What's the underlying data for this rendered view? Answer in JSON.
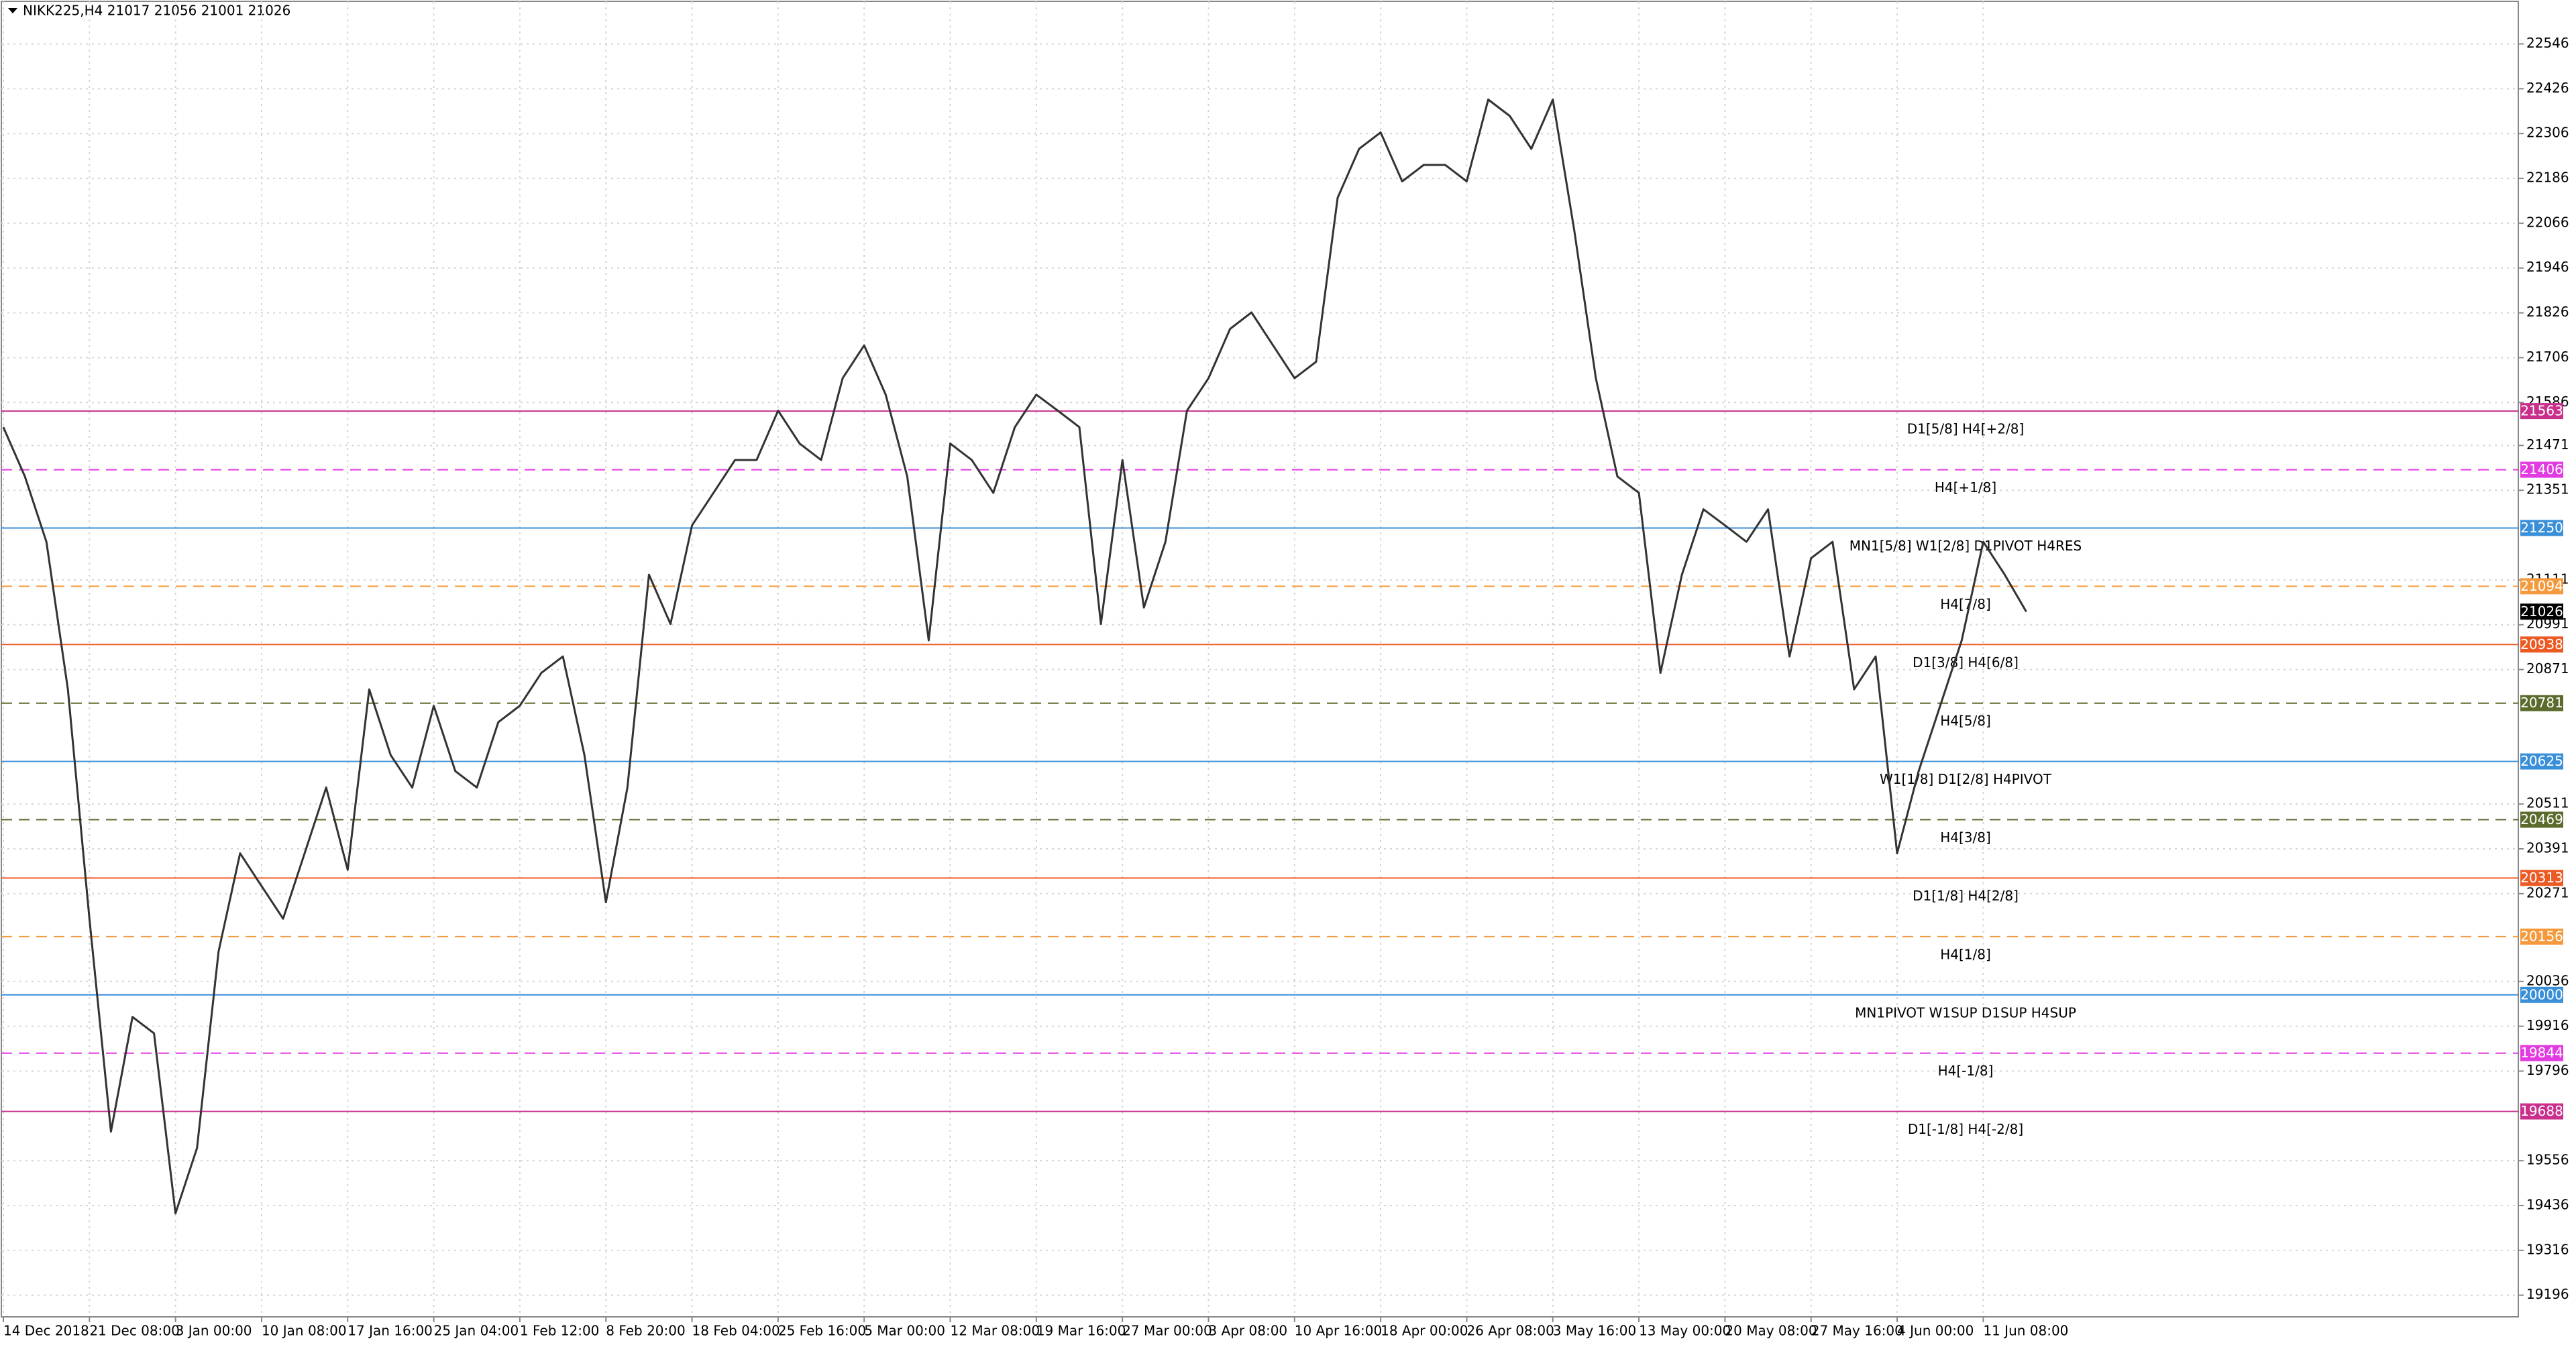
{
  "chart_data": {
    "type": "line",
    "title": "NIKK225,H4  21017 21056 21001 21026",
    "color": "#333333",
    "grid": true,
    "categories": [
      "14 Dec 2018",
      null,
      null,
      null,
      "21 Dec 08:00",
      null,
      null,
      null,
      "3 Jan 00:00",
      null,
      null,
      null,
      "10 Jan 08:00",
      null,
      null,
      null,
      "17 Jan 16:00",
      null,
      null,
      null,
      "25 Jan 04:00",
      null,
      null,
      null,
      "1 Feb 12:00",
      null,
      null,
      null,
      "8 Feb 20:00",
      null,
      null,
      null,
      "18 Feb 04:00",
      null,
      null,
      null,
      "25 Feb 16:00",
      null,
      null,
      null,
      "5 Mar 00:00",
      null,
      null,
      null,
      "12 Mar 08:00",
      null,
      null,
      null,
      "19 Mar 16:00",
      null,
      null,
      null,
      "27 Mar 00:00",
      null,
      null,
      null,
      "3 Apr 08:00",
      null,
      null,
      null,
      "10 Apr 16:00",
      null,
      null,
      null,
      "18 Apr 00:00",
      null,
      null,
      null,
      "26 Apr 08:00",
      null,
      null,
      null,
      "3 May 16:00",
      null,
      null,
      null,
      "13 May 00:00",
      null,
      null,
      null,
      "20 May 08:00",
      null,
      null,
      null,
      "27 May 16:00",
      null,
      null,
      null,
      "4 Jun 00:00",
      null,
      null,
      null,
      "11 Jun 08:00",
      null,
      null
    ],
    "values": [
      21520,
      21388,
      21213,
      20818,
      20204,
      19634,
      19941,
      19897,
      19415,
      19590,
      20116,
      20379,
      20291,
      20204,
      20379,
      20555,
      20335,
      20818,
      20642,
      20555,
      20774,
      20599,
      20555,
      20730,
      20774,
      20862,
      20906,
      20642,
      20248,
      20555,
      21125,
      20993,
      21257,
      21344,
      21432,
      21432,
      21564,
      21476,
      21432,
      21651,
      21739,
      21607,
      21388,
      20949,
      21476,
      21432,
      21344,
      21520,
      21607,
      21564,
      21520,
      20993,
      21432,
      21037,
      21213,
      21564,
      21651,
      21783,
      21827,
      21739,
      21651,
      21695,
      22134,
      22265,
      22309,
      22178,
      22222,
      22222,
      22178,
      22397,
      22353,
      22265,
      22397,
      22046,
      21651,
      21388,
      21344,
      20862,
      21125,
      21300,
      21257,
      21213,
      21300,
      20906,
      21169,
      21213,
      20818,
      20906,
      20379,
      20599,
      20774,
      20949,
      21213,
      21125,
      21026
    ],
    "ylim": [
      19138,
      22660
    ],
    "yticks": [
      22546,
      22426,
      22306,
      22186,
      22066,
      21946,
      21826,
      21706,
      21586,
      21471,
      21351,
      21111,
      20991,
      20871,
      20511,
      20391,
      20271,
      20036,
      19916,
      19796,
      19556,
      19436,
      19316,
      19196
    ],
    "levels": [
      {
        "value": 21563,
        "label": "D1[5/8] H4[+2/8]",
        "color": "#c8308c",
        "style": "solid"
      },
      {
        "value": 21406,
        "label": "H4[+1/8]",
        "color": "#e23be2",
        "style": "dashed"
      },
      {
        "value": 21250,
        "label": "MN1[5/8] W1[2/8] D1PIVOT H4RES",
        "color": "#3a8fd9",
        "style": "solid"
      },
      {
        "value": 21094,
        "label": "H4[7/8]",
        "color": "#f59a3c",
        "style": "dashed"
      },
      {
        "value": 20938,
        "label": "D1[3/8] H4[6/8]",
        "color": "#ec5a24",
        "style": "solid"
      },
      {
        "value": 20781,
        "label": "H4[5/8]",
        "color": "#5b6b2c",
        "style": "dashed"
      },
      {
        "value": 20625,
        "label": "W1[1/8] D1[2/8] H4PIVOT",
        "color": "#3a8fd9",
        "style": "solid"
      },
      {
        "value": 20469,
        "label": "H4[3/8]",
        "color": "#5b6b2c",
        "style": "dashed"
      },
      {
        "value": 20313,
        "label": "D1[1/8] H4[2/8]",
        "color": "#ec5a24",
        "style": "solid"
      },
      {
        "value": 20156,
        "label": "H4[1/8]",
        "color": "#f59a3c",
        "style": "dashed"
      },
      {
        "value": 20000,
        "label": "MN1PIVOT W1SUP D1SUP H4SUP",
        "color": "#3a8fd9",
        "style": "solid"
      },
      {
        "value": 19844,
        "label": "H4[-1/8]",
        "color": "#e23be2",
        "style": "dashed"
      },
      {
        "value": 19688,
        "label": "D1[-1/8] H4[-2/8]",
        "color": "#c8308c",
        "style": "solid"
      }
    ]
  }
}
